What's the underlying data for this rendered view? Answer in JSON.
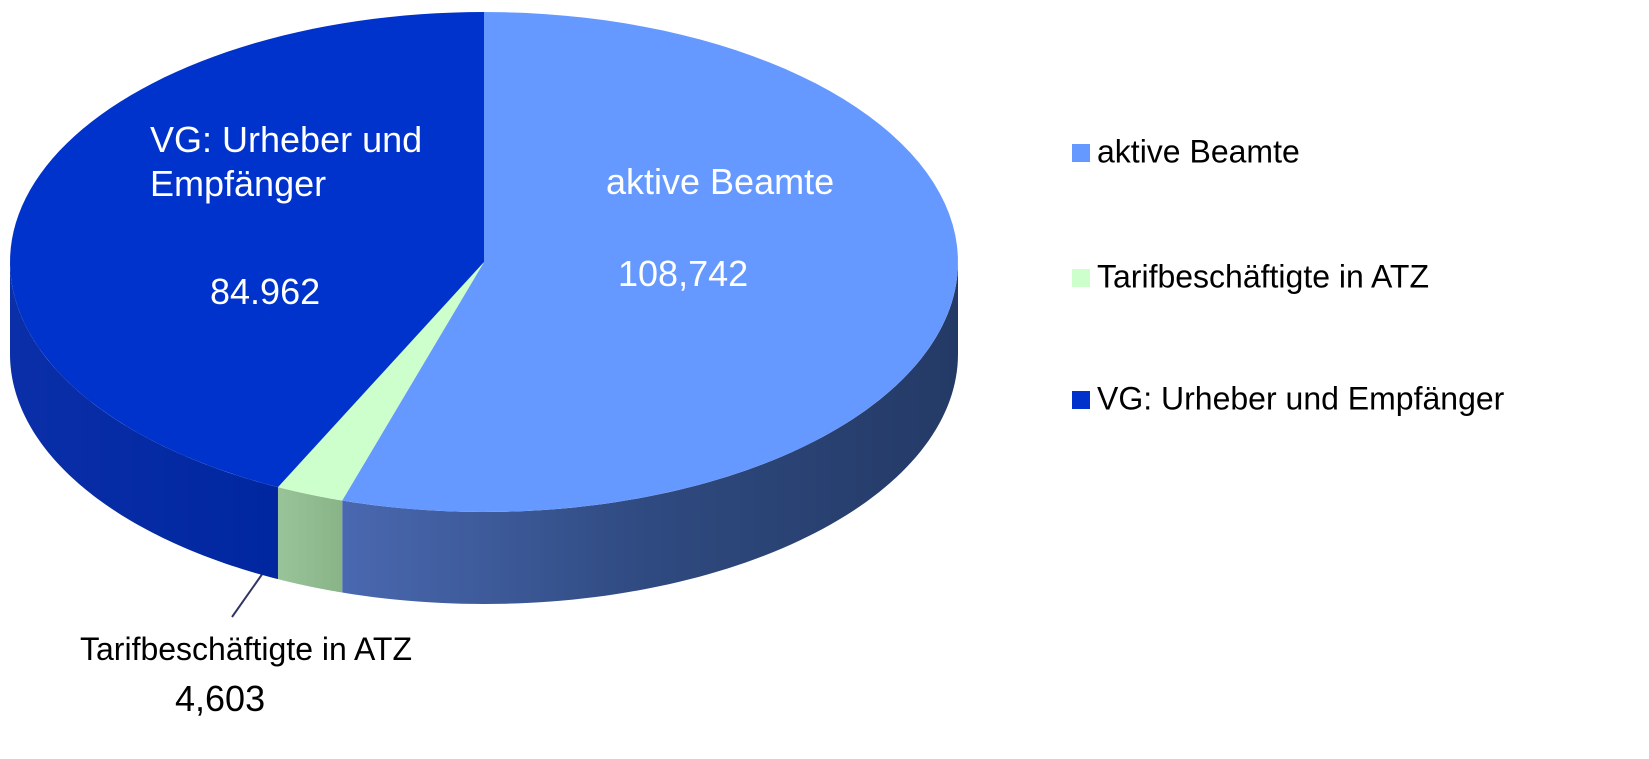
{
  "chart_data": {
    "type": "pie",
    "categories": [
      "aktive Beamte",
      "Tarifbeschäftigte in ATZ",
      "VG: Urheber und Empfänger"
    ],
    "values": [
      108742,
      4603,
      84962
    ],
    "value_labels": [
      "108,742",
      "4,603",
      "84.962"
    ],
    "colors": [
      "#6699ff",
      "#ccffcc",
      "#0033cc"
    ],
    "legend": "right"
  }
}
